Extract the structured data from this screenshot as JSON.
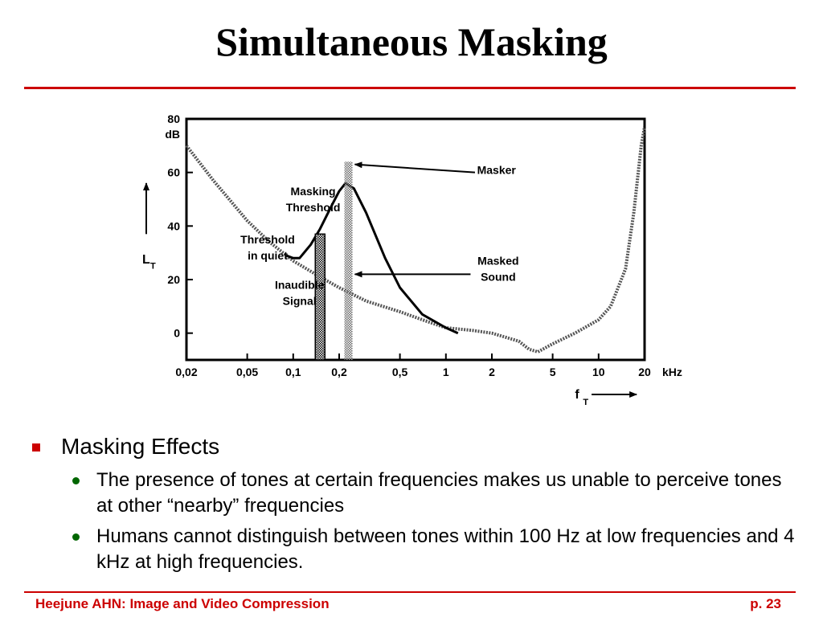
{
  "slide": {
    "title": "Simultaneous Masking",
    "bullets": [
      {
        "text": "Masking Effects",
        "sub": [
          "The presence of tones at certain frequencies makes us unable to perceive tones at other “nearby” frequencies",
          "Humans cannot distinguish between tones within 100 Hz at low frequencies and 4 kHz at high frequencies."
        ]
      }
    ],
    "footer_left": "Heejune AHN: Image and Video Compression",
    "footer_right": "p. 23"
  },
  "chart_data": {
    "type": "line",
    "x_scale": "log",
    "xlim": [
      0.02,
      20
    ],
    "ylim": [
      -10,
      80
    ],
    "x_ticks": [
      {
        "v": 0.02,
        "label": "0,02"
      },
      {
        "v": 0.05,
        "label": "0,05"
      },
      {
        "v": 0.1,
        "label": "0,1"
      },
      {
        "v": 0.2,
        "label": "0,2"
      },
      {
        "v": 0.5,
        "label": "0,5"
      },
      {
        "v": 1,
        "label": "1"
      },
      {
        "v": 2,
        "label": "2"
      },
      {
        "v": 5,
        "label": "5"
      },
      {
        "v": 10,
        "label": "10"
      },
      {
        "v": 20,
        "label": "20"
      }
    ],
    "x_unit": "kHz",
    "y_ticks": [
      {
        "v": 0,
        "label": "0"
      },
      {
        "v": 20,
        "label": "20"
      },
      {
        "v": 40,
        "label": "40"
      },
      {
        "v": 60,
        "label": "60"
      },
      {
        "v": 80,
        "label": "80"
      }
    ],
    "y_unit": "dB",
    "xlabel": "f",
    "xlabel_sub": "T",
    "ylabel": "L",
    "ylabel_sub": "T",
    "series": [
      {
        "name": "Threshold in quiet",
        "x": [
          0.02,
          0.03,
          0.05,
          0.07,
          0.1,
          0.15,
          0.2,
          0.3,
          0.5,
          0.7,
          1,
          1.5,
          2,
          3,
          3.5,
          4,
          5,
          7,
          10,
          12,
          15,
          17,
          19,
          20
        ],
        "y": [
          70,
          57,
          42,
          34,
          27,
          21,
          17,
          12,
          8,
          5,
          2,
          1,
          0,
          -3,
          -6,
          -7,
          -4,
          0,
          5,
          10,
          24,
          45,
          70,
          77
        ]
      },
      {
        "name": "Masking Threshold",
        "x": [
          0.09,
          0.1,
          0.11,
          0.13,
          0.15,
          0.18,
          0.2,
          0.22,
          0.25,
          0.3,
          0.4,
          0.5,
          0.7,
          1,
          1.2
        ],
        "y": [
          29,
          28,
          28,
          33,
          39,
          48,
          53,
          56,
          54,
          45,
          28,
          17,
          7,
          2,
          0
        ]
      }
    ],
    "bars": [
      {
        "name": "Inaudible Signal",
        "x": 0.15,
        "value": 37
      }
    ],
    "masker": {
      "x": 0.23,
      "value": 64
    },
    "annotations": [
      "Masker",
      "Masking Threshold",
      "Threshold in quiet",
      "Masked Sound",
      "Inaudible Signal"
    ]
  }
}
